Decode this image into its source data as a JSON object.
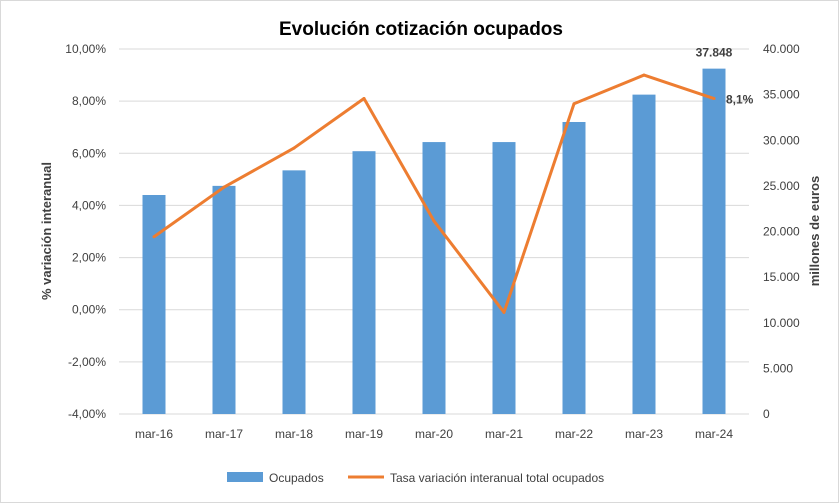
{
  "chart_data": {
    "type": "bar+line",
    "title": "Evolución cotización ocupados",
    "categories": [
      "mar-16",
      "mar-17",
      "mar-18",
      "mar-19",
      "mar-20",
      "mar-21",
      "mar-22",
      "mar-23",
      "mar-24"
    ],
    "series": [
      {
        "name": "Ocupados",
        "kind": "bar",
        "axis": "right",
        "color": "#5b9bd5",
        "values": [
          24000,
          25000,
          26700,
          28800,
          29800,
          29800,
          32000,
          35000,
          37848
        ]
      },
      {
        "name": "Tasa variación interanual total ocupados",
        "kind": "line",
        "axis": "left",
        "color": "#ed7d31",
        "values": [
          2.8,
          4.7,
          6.2,
          8.1,
          3.4,
          -0.1,
          7.9,
          9.0,
          8.1
        ]
      }
    ],
    "left_axis": {
      "label": "% variación interanual",
      "range": [
        -4,
        10
      ],
      "ticks": [
        "-4,00%",
        "-2,00%",
        "0,00%",
        "2,00%",
        "4,00%",
        "6,00%",
        "8,00%",
        "10,00%"
      ]
    },
    "right_axis": {
      "label": "millones de euros",
      "range": [
        0,
        40000
      ],
      "ticks": [
        "0",
        "5.000",
        "10.000",
        "15.000",
        "20.000",
        "25.000",
        "30.000",
        "35.000",
        "40.000"
      ]
    },
    "data_labels": [
      {
        "series": 0,
        "index": 8,
        "text": "37.848"
      },
      {
        "series": 1,
        "index": 8,
        "text": "8,1%"
      }
    ],
    "legend_position": "bottom",
    "grid": true
  }
}
